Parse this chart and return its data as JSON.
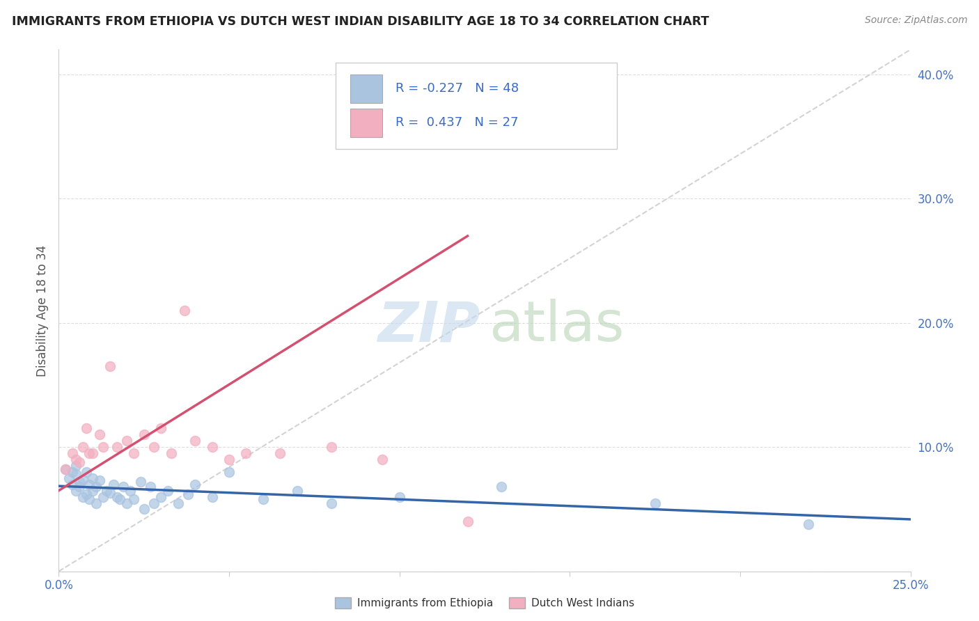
{
  "title": "IMMIGRANTS FROM ETHIOPIA VS DUTCH WEST INDIAN DISABILITY AGE 18 TO 34 CORRELATION CHART",
  "source": "Source: ZipAtlas.com",
  "ylabel": "Disability Age 18 to 34",
  "xlim": [
    0.0,
    0.25
  ],
  "ylim": [
    0.0,
    0.42
  ],
  "legend1_R": "-0.227",
  "legend1_N": "48",
  "legend2_R": "0.437",
  "legend2_N": "27",
  "blue_color": "#aac4e0",
  "pink_color": "#f2afc0",
  "line_blue": "#3465a8",
  "line_pink": "#d45070",
  "trend_gray": "#c8c8c8",
  "ethiopia_x": [
    0.002,
    0.003,
    0.004,
    0.004,
    0.005,
    0.005,
    0.005,
    0.006,
    0.006,
    0.007,
    0.007,
    0.008,
    0.008,
    0.009,
    0.009,
    0.01,
    0.01,
    0.011,
    0.011,
    0.012,
    0.013,
    0.014,
    0.015,
    0.016,
    0.017,
    0.018,
    0.019,
    0.02,
    0.021,
    0.022,
    0.024,
    0.025,
    0.027,
    0.028,
    0.03,
    0.032,
    0.035,
    0.038,
    0.04,
    0.045,
    0.05,
    0.06,
    0.07,
    0.08,
    0.1,
    0.13,
    0.175,
    0.22
  ],
  "ethiopia_y": [
    0.082,
    0.075,
    0.08,
    0.07,
    0.085,
    0.078,
    0.065,
    0.072,
    0.068,
    0.074,
    0.06,
    0.08,
    0.062,
    0.058,
    0.07,
    0.075,
    0.065,
    0.068,
    0.055,
    0.073,
    0.06,
    0.065,
    0.063,
    0.07,
    0.06,
    0.058,
    0.068,
    0.055,
    0.065,
    0.058,
    0.072,
    0.05,
    0.068,
    0.055,
    0.06,
    0.065,
    0.055,
    0.062,
    0.07,
    0.06,
    0.08,
    0.058,
    0.065,
    0.055,
    0.06,
    0.068,
    0.055,
    0.038
  ],
  "dutch_x": [
    0.002,
    0.004,
    0.005,
    0.006,
    0.007,
    0.008,
    0.009,
    0.01,
    0.012,
    0.013,
    0.015,
    0.017,
    0.02,
    0.022,
    0.025,
    0.028,
    0.03,
    0.033,
    0.037,
    0.04,
    0.045,
    0.05,
    0.055,
    0.065,
    0.08,
    0.095,
    0.12
  ],
  "dutch_y": [
    0.082,
    0.095,
    0.09,
    0.088,
    0.1,
    0.115,
    0.095,
    0.095,
    0.11,
    0.1,
    0.165,
    0.1,
    0.105,
    0.095,
    0.11,
    0.1,
    0.115,
    0.095,
    0.21,
    0.105,
    0.1,
    0.09,
    0.095,
    0.095,
    0.1,
    0.09,
    0.04
  ],
  "blue_trend_x": [
    0.002,
    0.22
  ],
  "blue_trend_y": [
    0.082,
    0.038
  ],
  "pink_trend_x0": 0.002,
  "pink_trend_x1": 0.12,
  "watermark_zip_color": "#c5d8ee",
  "watermark_atlas_color": "#b8d4b8"
}
